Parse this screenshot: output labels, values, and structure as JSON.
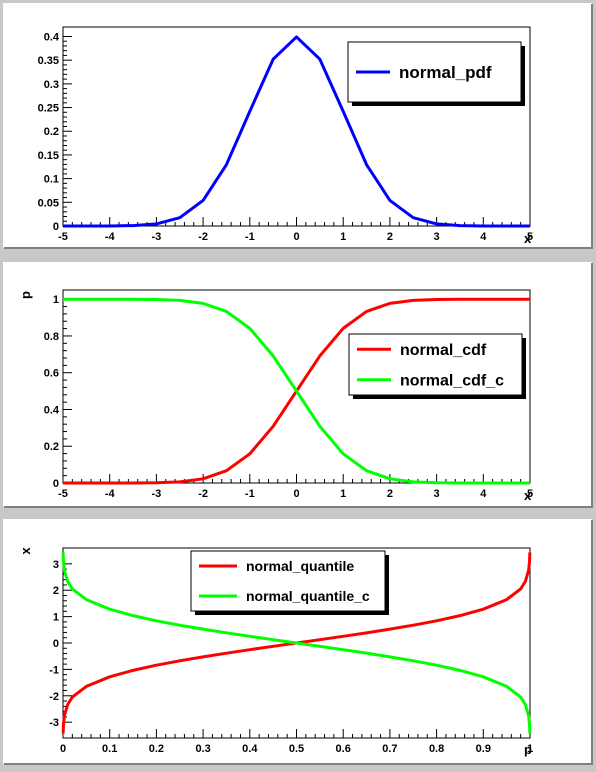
{
  "chart_data": [
    {
      "type": "line",
      "x_range": [
        -5,
        5
      ],
      "ylim": [
        0,
        0.42
      ],
      "xticks": [
        -5,
        -4,
        -3,
        -2,
        -1,
        0,
        1,
        2,
        3,
        4,
        5
      ],
      "xtick_labels": [
        "-5",
        "-4",
        "-3",
        "-2",
        "-1",
        "0",
        "1",
        "2",
        "3",
        "4",
        "5"
      ],
      "yticks": [
        0,
        0.05,
        0.1,
        0.15,
        0.2,
        0.25,
        0.3,
        0.35,
        0.4
      ],
      "ytick_labels": [
        "0",
        "0.05",
        "0.1",
        "0.15",
        "0.2",
        "0.25",
        "0.3",
        "0.35",
        "0.4"
      ],
      "xlabel": "x",
      "ylabel": "",
      "legend_position": "top-right",
      "series": [
        {
          "name": "normal_pdf",
          "color": "#0000ff",
          "x": [
            -5,
            -4.5,
            -4,
            -3.5,
            -3,
            -2.5,
            -2,
            -1.5,
            -1,
            -0.5,
            0,
            0.5,
            1,
            1.5,
            2,
            2.5,
            3,
            3.5,
            4,
            4.5,
            5
          ],
          "y": [
            1.5e-06,
            1.6e-05,
            0.000134,
            0.000873,
            0.00443,
            0.0175,
            0.054,
            0.1295,
            0.242,
            0.352,
            0.399,
            0.352,
            0.242,
            0.1295,
            0.054,
            0.0175,
            0.00443,
            0.000873,
            0.000134,
            1.6e-05,
            1.5e-06
          ]
        }
      ]
    },
    {
      "type": "line",
      "x_range": [
        -5,
        5
      ],
      "ylim": [
        0,
        1.05
      ],
      "xticks": [
        -5,
        -4,
        -3,
        -2,
        -1,
        0,
        1,
        2,
        3,
        4,
        5
      ],
      "xtick_labels": [
        "-5",
        "-4",
        "-3",
        "-2",
        "-1",
        "0",
        "1",
        "2",
        "3",
        "4",
        "5"
      ],
      "yticks": [
        0,
        0.2,
        0.4,
        0.6,
        0.8,
        1
      ],
      "ytick_labels": [
        "0",
        "0.2",
        "0.4",
        "0.6",
        "0.8",
        "1"
      ],
      "xlabel": "x",
      "ylabel": "p",
      "legend_position": "right",
      "series": [
        {
          "name": "normal_cdf",
          "color": "#ff0000",
          "x": [
            -5,
            -4.5,
            -4,
            -3.5,
            -3,
            -2.5,
            -2,
            -1.5,
            -1,
            -0.5,
            0,
            0.5,
            1,
            1.5,
            2,
            2.5,
            3,
            3.5,
            4,
            4.5,
            5
          ],
          "y": [
            3e-07,
            3.4e-06,
            3.17e-05,
            0.000233,
            0.00135,
            0.00621,
            0.02275,
            0.0668,
            0.1587,
            0.3085,
            0.5,
            0.6915,
            0.8413,
            0.9332,
            0.97725,
            0.99379,
            0.99865,
            0.999767,
            0.999968,
            0.999997,
            1.0
          ]
        },
        {
          "name": "normal_cdf_c",
          "color": "#00ff00",
          "x": [
            -5,
            -4.5,
            -4,
            -3.5,
            -3,
            -2.5,
            -2,
            -1.5,
            -1,
            -0.5,
            0,
            0.5,
            1,
            1.5,
            2,
            2.5,
            3,
            3.5,
            4,
            4.5,
            5
          ],
          "y": [
            1.0,
            0.999997,
            0.999968,
            0.999767,
            0.99865,
            0.99379,
            0.97725,
            0.9332,
            0.8413,
            0.6915,
            0.5,
            0.3085,
            0.1587,
            0.0668,
            0.02275,
            0.00621,
            0.00135,
            0.000233,
            3.17e-05,
            3.4e-06,
            3e-07
          ]
        }
      ]
    },
    {
      "type": "line",
      "x_range": [
        0,
        1
      ],
      "ylim": [
        -3.6,
        3.6
      ],
      "xticks": [
        0,
        0.1,
        0.2,
        0.3,
        0.4,
        0.5,
        0.6,
        0.7,
        0.8,
        0.9,
        1
      ],
      "xtick_labels": [
        "0",
        "0.1",
        "0.2",
        "0.3",
        "0.4",
        "0.5",
        "0.6",
        "0.7",
        "0.8",
        "0.9",
        "1"
      ],
      "yticks": [
        -3,
        -2,
        -1,
        0,
        1,
        2,
        3
      ],
      "ytick_labels": [
        "-3",
        "-2",
        "-1",
        "0",
        "1",
        "2",
        "3"
      ],
      "xlabel": "p",
      "ylabel": "x",
      "legend_position": "top-center",
      "series": [
        {
          "name": "normal_quantile",
          "color": "#ff0000",
          "x": [
            0.0003,
            0.001,
            0.003,
            0.01,
            0.02,
            0.05,
            0.1,
            0.15,
            0.2,
            0.25,
            0.3,
            0.35,
            0.4,
            0.45,
            0.5,
            0.55,
            0.6,
            0.65,
            0.7,
            0.75,
            0.8,
            0.85,
            0.9,
            0.95,
            0.98,
            0.99,
            0.997,
            0.999,
            0.9997
          ],
          "y": [
            -3.43,
            -3.09,
            -2.75,
            -2.33,
            -2.05,
            -1.645,
            -1.2816,
            -1.0364,
            -0.8416,
            -0.6745,
            -0.5244,
            -0.3853,
            -0.2533,
            -0.1257,
            0,
            0.1257,
            0.2533,
            0.3853,
            0.5244,
            0.6745,
            0.8416,
            1.0364,
            1.2816,
            1.645,
            2.05,
            2.33,
            2.75,
            3.09,
            3.43
          ]
        },
        {
          "name": "normal_quantile_c",
          "color": "#00ff00",
          "x": [
            0.0003,
            0.001,
            0.003,
            0.01,
            0.02,
            0.05,
            0.1,
            0.15,
            0.2,
            0.25,
            0.3,
            0.35,
            0.4,
            0.45,
            0.5,
            0.55,
            0.6,
            0.65,
            0.7,
            0.75,
            0.8,
            0.85,
            0.9,
            0.95,
            0.98,
            0.99,
            0.997,
            0.999,
            0.9997
          ],
          "y": [
            3.43,
            3.09,
            2.75,
            2.33,
            2.05,
            1.645,
            1.2816,
            1.0364,
            0.8416,
            0.6745,
            0.5244,
            0.3853,
            0.2533,
            0.1257,
            0,
            -0.1257,
            -0.2533,
            -0.3853,
            -0.5244,
            -0.6745,
            -0.8416,
            -1.0364,
            -1.2816,
            -1.645,
            -2.05,
            -2.33,
            -2.75,
            -3.09,
            -3.43
          ]
        }
      ]
    }
  ]
}
